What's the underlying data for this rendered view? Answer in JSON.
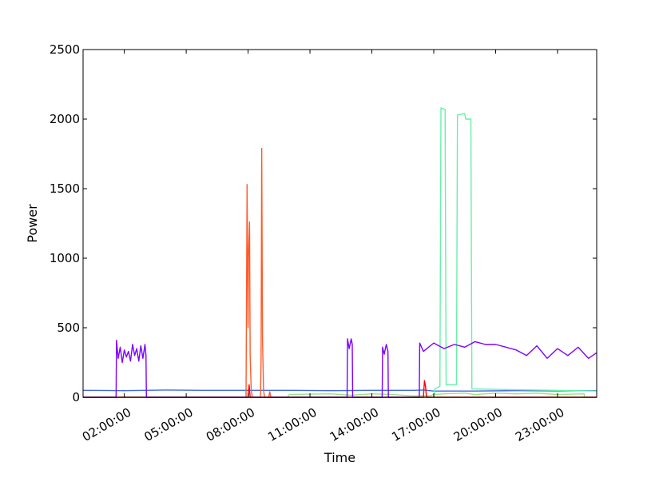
{
  "chart_data": {
    "type": "line",
    "title": "",
    "xlabel": "Time",
    "ylabel": "Power",
    "xlim": [
      0.0,
      24.9
    ],
    "ylim": [
      0,
      2500
    ],
    "grid": false,
    "legend": "none",
    "x_ticks": [
      {
        "value": 2,
        "label": "02:00:00"
      },
      {
        "value": 5,
        "label": "05:00:00"
      },
      {
        "value": 8,
        "label": "08:00:00"
      },
      {
        "value": 11,
        "label": "11:00:00"
      },
      {
        "value": 14,
        "label": "14:00:00"
      },
      {
        "value": 17,
        "label": "17:00:00"
      },
      {
        "value": 20,
        "label": "20:00:00"
      },
      {
        "value": 23,
        "label": "23:00:00"
      }
    ],
    "y_ticks": [
      {
        "value": 0,
        "label": "0"
      },
      {
        "value": 500,
        "label": "500"
      },
      {
        "value": 1000,
        "label": "1000"
      },
      {
        "value": 1500,
        "label": "1500"
      },
      {
        "value": 2000,
        "label": "2000"
      },
      {
        "value": 2500,
        "label": "2500"
      }
    ],
    "series": [
      {
        "color": "#4169e1",
        "x": [
          0.0,
          2.0,
          4.0,
          6.0,
          8.0,
          10.0,
          12.0,
          14.0,
          16.0,
          16.5,
          17.0,
          19.0,
          21.0,
          23.0,
          24.9
        ],
        "y": [
          50,
          48,
          52,
          50,
          50,
          50,
          48,
          50,
          50,
          52,
          45,
          45,
          48,
          46,
          48
        ]
      },
      {
        "color": "#98e08a",
        "x": [
          0.0,
          9.9,
          10.0,
          12.0,
          13.0,
          14.0,
          15.0,
          16.0,
          16.8,
          17.0,
          17.5,
          18.5,
          19.0,
          20.0,
          21.0,
          22.0,
          23.0,
          24.3,
          24.3,
          24.9
        ],
        "y": [
          0,
          0,
          20,
          25,
          15,
          25,
          20,
          10,
          10,
          20,
          25,
          30,
          20,
          30,
          25,
          30,
          20,
          25,
          0,
          0
        ]
      },
      {
        "color": "#66f0a8",
        "x": [
          0.0,
          17.0,
          17.05,
          17.3,
          17.35,
          17.55,
          17.6,
          17.75,
          17.8,
          18.1,
          18.15,
          18.5,
          18.55,
          18.8,
          18.85,
          24.9
        ],
        "y": [
          0,
          0,
          60,
          80,
          2080,
          2070,
          90,
          90,
          90,
          90,
          2030,
          2040,
          2000,
          2000,
          60,
          45
        ]
      },
      {
        "color": "#ff5a28",
        "x": [
          0.0,
          7.9,
          7.95,
          8.0,
          8.02,
          8.07,
          8.1,
          8.15,
          8.2,
          8.6,
          8.63,
          8.66,
          8.7,
          8.75,
          8.8,
          9.0,
          9.05,
          9.1,
          24.9
        ],
        "y": [
          0,
          0,
          1530,
          500,
          1020,
          1260,
          300,
          60,
          0,
          0,
          280,
          1790,
          400,
          50,
          0,
          0,
          40,
          0,
          0
        ]
      },
      {
        "color": "#ff0000",
        "x": [
          0.0,
          8.0,
          8.05,
          8.1,
          16.5,
          16.55,
          16.6,
          16.65,
          24.9
        ],
        "y": [
          0,
          0,
          90,
          0,
          0,
          120,
          80,
          0,
          0
        ]
      },
      {
        "color": "#8000ff",
        "x": [
          0.0,
          1.6,
          1.62,
          1.7,
          1.8,
          1.9,
          2.0,
          2.1,
          2.2,
          2.3,
          2.4,
          2.5,
          2.6,
          2.7,
          2.8,
          2.9,
          3.0,
          3.05,
          3.07,
          12.8,
          12.82,
          12.9,
          13.0,
          13.05,
          13.07,
          14.5,
          14.52,
          14.6,
          14.7,
          14.78,
          14.8,
          16.3,
          16.32,
          16.5,
          17.0,
          17.5,
          18.0,
          18.5,
          19.0,
          19.5,
          20.0,
          20.5,
          21.0,
          21.5,
          22.0,
          22.5,
          23.0,
          23.5,
          24.0,
          24.5,
          24.9
        ],
        "y": [
          0,
          0,
          410,
          280,
          360,
          250,
          340,
          290,
          330,
          260,
          380,
          300,
          350,
          260,
          370,
          280,
          380,
          300,
          0,
          0,
          420,
          350,
          420,
          380,
          0,
          0,
          360,
          310,
          380,
          330,
          0,
          0,
          390,
          330,
          390,
          350,
          380,
          360,
          400,
          380,
          380,
          360,
          340,
          300,
          370,
          280,
          350,
          300,
          360,
          280,
          320
        ]
      }
    ]
  }
}
